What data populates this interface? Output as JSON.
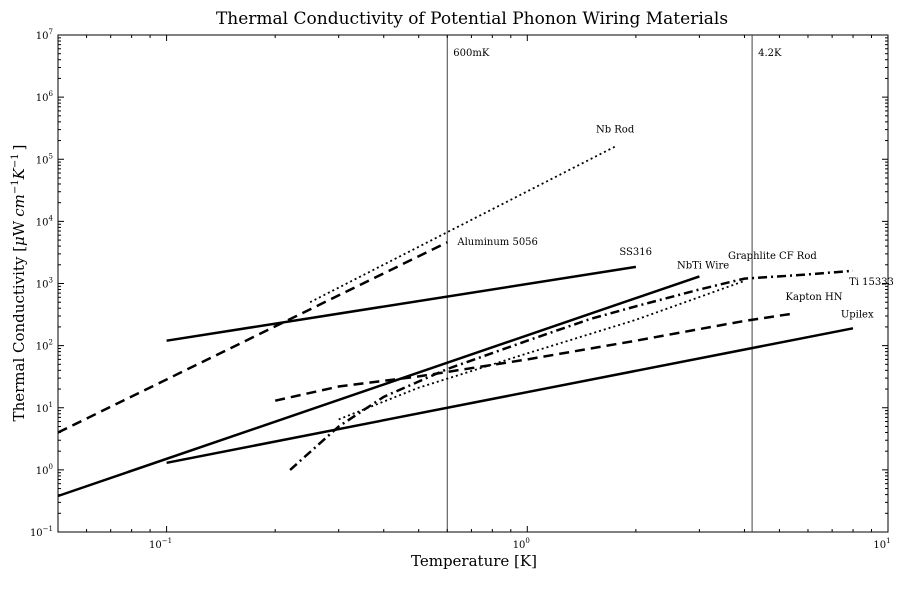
{
  "chart_data": {
    "type": "line",
    "title": "Thermal Conductivity of Potential Phonon Wiring Materials",
    "xlabel": "Temperature [K]",
    "ylabel_plain": "Thermal Conductivity [",
    "ylabel_mu": "μ",
    "ylabel_w": "W",
    "ylabel_cm": "cm",
    "ylabel_exp1": "−1",
    "ylabel_k": "K",
    "ylabel_exp2": "−1",
    "ylabel_close": "]",
    "x_scale": "log",
    "y_scale": "log",
    "xlim": [
      0.05,
      10
    ],
    "ylim": [
      0.1,
      10000000
    ],
    "grid": false,
    "x_ticks": [
      {
        "value": 0.1,
        "base": "10",
        "exp": "−1"
      },
      {
        "value": 1,
        "base": "10",
        "exp": "0"
      },
      {
        "value": 10,
        "base": "10",
        "exp": "1"
      }
    ],
    "y_ticks": [
      {
        "value": 0.1,
        "base": "10",
        "exp": "−1"
      },
      {
        "value": 1,
        "base": "10",
        "exp": "0"
      },
      {
        "value": 10,
        "base": "10",
        "exp": "1"
      },
      {
        "value": 100,
        "base": "10",
        "exp": "2"
      },
      {
        "value": 1000,
        "base": "10",
        "exp": "3"
      },
      {
        "value": 10000,
        "base": "10",
        "exp": "4"
      },
      {
        "value": 100000,
        "base": "10",
        "exp": "5"
      },
      {
        "value": 1000000,
        "base": "10",
        "exp": "6"
      },
      {
        "value": 10000000,
        "base": "10",
        "exp": "7"
      }
    ],
    "vlines": [
      {
        "x": 0.6,
        "label": "600mK"
      },
      {
        "x": 4.2,
        "label": "4.2K"
      }
    ],
    "series": [
      {
        "name": "Nb Rod",
        "style": "dotted",
        "points": [
          [
            0.25,
            500
          ],
          [
            1.75,
            160000
          ]
        ],
        "label_at": [
          1.55,
          270000
        ]
      },
      {
        "name": "Aluminum 5056",
        "style": "dashed",
        "points": [
          [
            0.05,
            4
          ],
          [
            0.6,
            4600
          ]
        ],
        "label_at": [
          0.64,
          4200
        ]
      },
      {
        "name": "SS316",
        "style": "solid",
        "points": [
          [
            0.1,
            120
          ],
          [
            2.0,
            1850
          ]
        ],
        "label_at": [
          1.8,
          2850
        ]
      },
      {
        "name": "NbTi Wire",
        "style": "solid",
        "points": [
          [
            0.05,
            0.38
          ],
          [
            3.0,
            1300
          ]
        ],
        "label_at": [
          2.6,
          1750
        ]
      },
      {
        "name": "Graphlite CF Rod",
        "style": "dotted",
        "points": [
          [
            0.3,
            6.5
          ],
          [
            0.5,
            21
          ],
          [
            1,
            75
          ],
          [
            2,
            260
          ],
          [
            4,
            1100
          ]
        ],
        "label_at": [
          3.6,
          2500
        ]
      },
      {
        "name": "Ti 15333",
        "style": "dashdot",
        "points": [
          [
            0.22,
            1
          ],
          [
            0.3,
            5
          ],
          [
            0.4,
            15
          ],
          [
            0.6,
            42
          ],
          [
            1,
            120
          ],
          [
            1.5,
            270
          ],
          [
            2,
            430
          ],
          [
            3,
            800
          ],
          [
            4,
            1200
          ],
          [
            5,
            1300
          ],
          [
            6,
            1400
          ],
          [
            8,
            1600
          ]
        ],
        "label_at": [
          7.8,
          950
        ]
      },
      {
        "name": "Kapton HN",
        "style": "dashed",
        "points": [
          [
            0.2,
            13
          ],
          [
            0.3,
            22
          ],
          [
            0.5,
            32
          ],
          [
            1,
            60
          ],
          [
            2,
            120
          ],
          [
            4,
            250
          ],
          [
            5.5,
            330
          ]
        ],
        "label_at": [
          5.2,
          540
        ]
      },
      {
        "name": "Upilex",
        "style": "solid",
        "points": [
          [
            0.1,
            1.3
          ],
          [
            8,
            190
          ]
        ],
        "label_at": [
          7.4,
          285
        ]
      }
    ]
  }
}
